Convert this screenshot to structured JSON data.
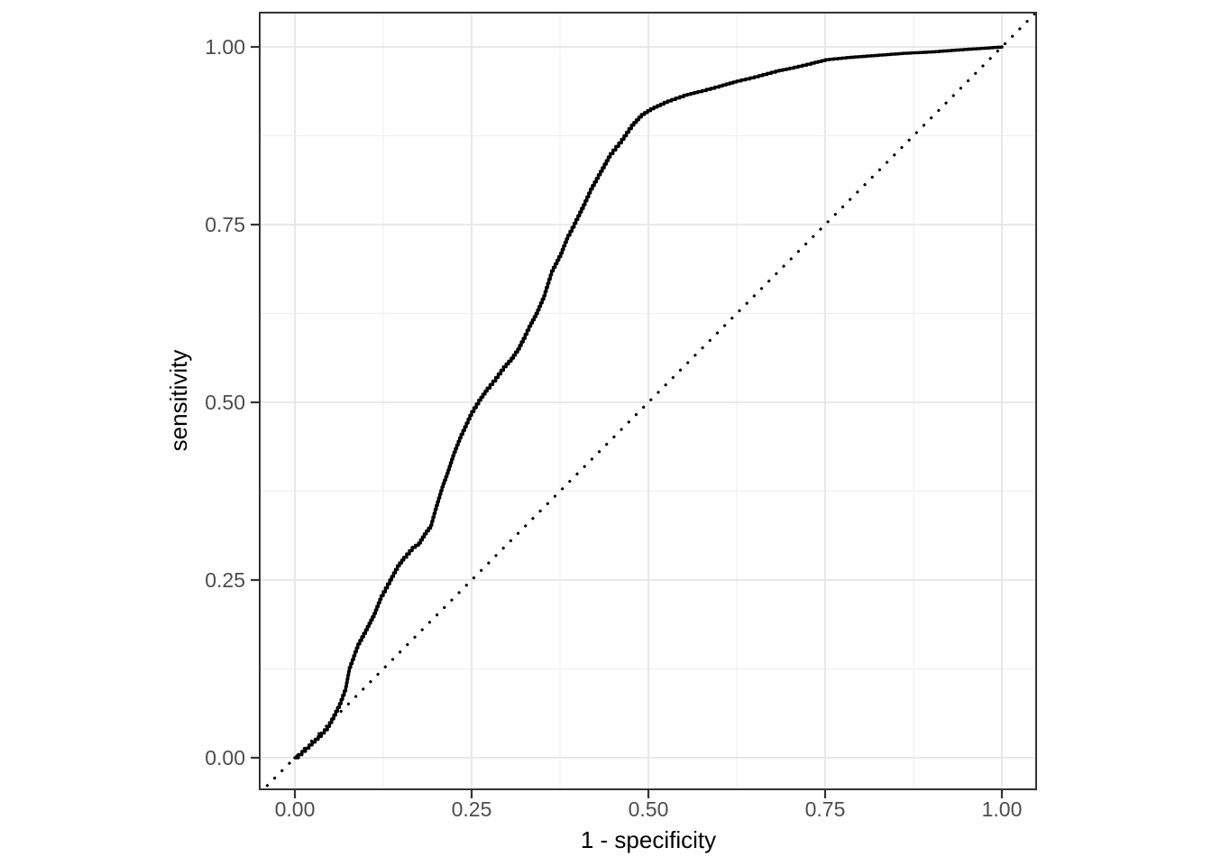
{
  "chart_data": {
    "type": "line",
    "title": "",
    "xlabel": "1 - specificity",
    "ylabel": "sensitivity",
    "xlim": [
      -0.05,
      1.05
    ],
    "ylim": [
      -0.05,
      1.05
    ],
    "grid": "major+minor",
    "legend": "none",
    "x_ticks": [
      0.0,
      0.25,
      0.5,
      0.75,
      1.0
    ],
    "x_tick_labels": [
      "0.00",
      "0.25",
      "0.50",
      "0.75",
      "1.00"
    ],
    "y_ticks": [
      0.0,
      0.25,
      0.5,
      0.75,
      1.0
    ],
    "y_tick_labels": [
      "0.00",
      "0.25",
      "0.50",
      "0.75",
      "1.00"
    ],
    "x_minor_ticks": [
      0.125,
      0.375,
      0.625,
      0.875
    ],
    "y_minor_ticks": [
      0.125,
      0.375,
      0.625,
      0.875
    ],
    "series": [
      {
        "name": "roc-curve",
        "style": "solid-step",
        "color": "#000000",
        "points": [
          [
            0.0,
            0.0
          ],
          [
            0.01,
            0.009
          ],
          [
            0.02,
            0.018
          ],
          [
            0.033,
            0.03
          ],
          [
            0.046,
            0.044
          ],
          [
            0.055,
            0.06
          ],
          [
            0.063,
            0.076
          ],
          [
            0.072,
            0.1
          ],
          [
            0.077,
            0.127
          ],
          [
            0.089,
            0.16
          ],
          [
            0.1,
            0.18
          ],
          [
            0.112,
            0.203
          ],
          [
            0.122,
            0.228
          ],
          [
            0.134,
            0.25
          ],
          [
            0.145,
            0.27
          ],
          [
            0.154,
            0.282
          ],
          [
            0.166,
            0.296
          ],
          [
            0.175,
            0.302
          ],
          [
            0.183,
            0.315
          ],
          [
            0.192,
            0.327
          ],
          [
            0.2,
            0.355
          ],
          [
            0.208,
            0.381
          ],
          [
            0.215,
            0.4
          ],
          [
            0.225,
            0.43
          ],
          [
            0.235,
            0.455
          ],
          [
            0.25,
            0.487
          ],
          [
            0.26,
            0.503
          ],
          [
            0.272,
            0.52
          ],
          [
            0.284,
            0.535
          ],
          [
            0.295,
            0.55
          ],
          [
            0.306,
            0.562
          ],
          [
            0.315,
            0.575
          ],
          [
            0.323,
            0.59
          ],
          [
            0.331,
            0.607
          ],
          [
            0.341,
            0.625
          ],
          [
            0.352,
            0.65
          ],
          [
            0.363,
            0.685
          ],
          [
            0.376,
            0.71
          ],
          [
            0.386,
            0.735
          ],
          [
            0.395,
            0.752
          ],
          [
            0.408,
            0.778
          ],
          [
            0.418,
            0.8
          ],
          [
            0.432,
            0.825
          ],
          [
            0.446,
            0.85
          ],
          [
            0.462,
            0.87
          ],
          [
            0.476,
            0.89
          ],
          [
            0.49,
            0.905
          ],
          [
            0.503,
            0.913
          ],
          [
            0.527,
            0.924
          ],
          [
            0.55,
            0.932
          ],
          [
            0.57,
            0.937
          ],
          [
            0.6,
            0.945
          ],
          [
            0.625,
            0.952
          ],
          [
            0.65,
            0.958
          ],
          [
            0.68,
            0.966
          ],
          [
            0.7,
            0.97
          ],
          [
            0.73,
            0.977
          ],
          [
            0.75,
            0.982
          ],
          [
            0.78,
            0.985
          ],
          [
            0.82,
            0.988
          ],
          [
            0.86,
            0.991
          ],
          [
            0.9,
            0.993
          ],
          [
            0.94,
            0.996
          ],
          [
            0.97,
            0.998
          ],
          [
            1.0,
            1.0
          ]
        ]
      },
      {
        "name": "chance-diagonal",
        "style": "dotted",
        "color": "#000000",
        "points": [
          [
            0,
            0
          ],
          [
            1,
            1
          ]
        ]
      }
    ],
    "colors": {
      "background": "#ffffff",
      "panel_background": "#ffffff",
      "grid_major": "#e6e6e6",
      "grid_minor": "#efefef",
      "panel_border": "#333333",
      "tick_mark": "#333333",
      "axis_text": "#4d4d4d",
      "axis_title": "#000000",
      "curve": "#000000"
    }
  }
}
